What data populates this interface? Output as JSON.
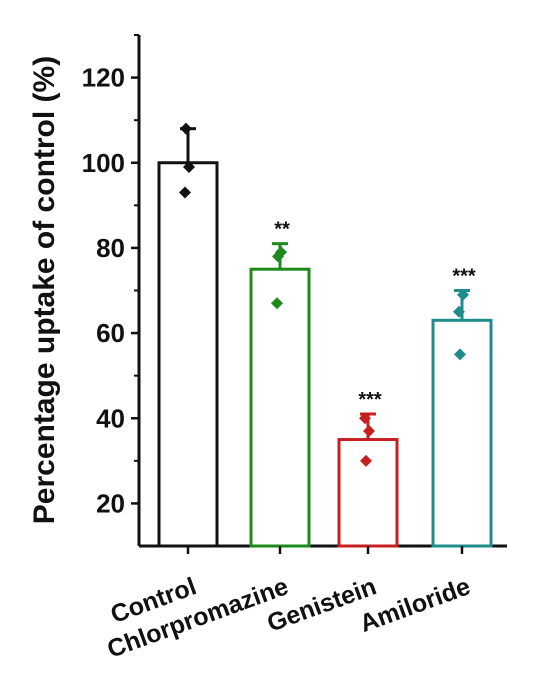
{
  "chart_data": {
    "type": "bar",
    "categories": [
      "Control",
      "Chlorpromazine",
      "Genistein",
      "Amiloride"
    ],
    "values": [
      100,
      75,
      35,
      63
    ],
    "error_upper": [
      108,
      81,
      41,
      70
    ],
    "points": [
      [
        108,
        93,
        99
      ],
      [
        78,
        67,
        79
      ],
      [
        30,
        40,
        37
      ],
      [
        55,
        65,
        69
      ]
    ],
    "significance": [
      "",
      "**",
      "***",
      "***"
    ],
    "colors": [
      "#111111",
      "#1e8a1e",
      "#c61f1f",
      "#1f8c8c"
    ],
    "ylabel": "Percentage uptake of control (%)",
    "xlabel": "",
    "ylim": [
      10,
      130
    ],
    "yticks": [
      "20",
      "40",
      "60",
      "80",
      "100",
      "120"
    ],
    "grid": false,
    "legend": "none"
  }
}
